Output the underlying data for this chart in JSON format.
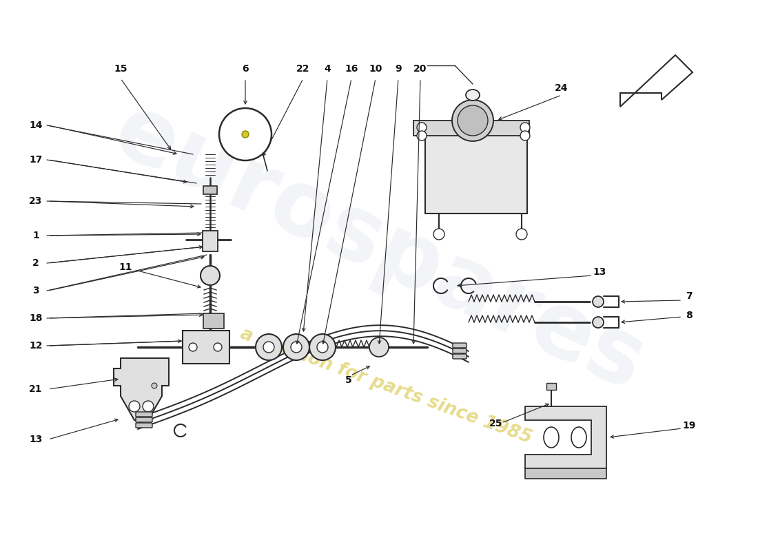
{
  "bg_color": "#ffffff",
  "lc": "#2a2a2a",
  "fc_light": "#e0e0e0",
  "fc_mid": "#c8c8c8",
  "fc_dark": "#aaaaaa",
  "watermark_text1": "eurospares",
  "watermark_text2": "a passion for parts since 1985",
  "watermark_color1": "#c8d0e0",
  "watermark_color2": "#d4c030",
  "arrow_color": "#1a1a1a"
}
